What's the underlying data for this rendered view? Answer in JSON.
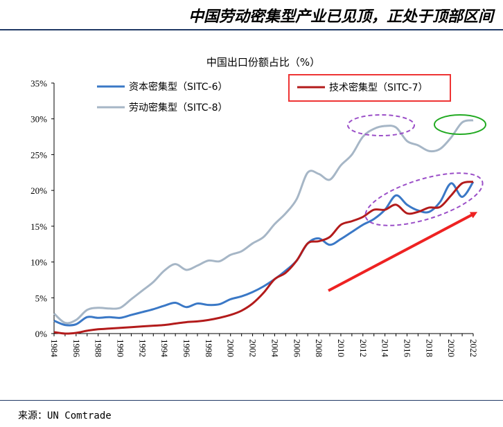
{
  "header": {
    "title": "中国劳动密集型产业已见顶，正处于顶部区间"
  },
  "footer": {
    "source": "来源：UN Comtrade"
  },
  "chart_data": {
    "type": "line",
    "title": "中国出口份额占比（%）",
    "xlabel": "",
    "ylabel": "",
    "xlim": [
      1984,
      2022
    ],
    "ylim": [
      0,
      35
    ],
    "y_ticks": [
      "0%",
      "5%",
      "10%",
      "15%",
      "20%",
      "25%",
      "30%",
      "35%"
    ],
    "x_ticks": [
      "1984",
      "1986",
      "1988",
      "1990",
      "1992",
      "1994",
      "1996",
      "1998",
      "2000",
      "2002",
      "2004",
      "2006",
      "2008",
      "2010",
      "2012",
      "2014",
      "2016",
      "2018",
      "2020",
      "2022"
    ],
    "grid": false,
    "legend_position": "top-left",
    "x": [
      1984,
      1985,
      1986,
      1987,
      1988,
      1989,
      1990,
      1991,
      1992,
      1993,
      1994,
      1995,
      1996,
      1997,
      1998,
      1999,
      2000,
      2001,
      2002,
      2003,
      2004,
      2005,
      2006,
      2007,
      2008,
      2009,
      2010,
      2011,
      2012,
      2013,
      2014,
      2015,
      2016,
      2017,
      2018,
      2019,
      2020,
      2021,
      2022
    ],
    "series": [
      {
        "name": "资本密集型（SITC-6）",
        "color": "#3a78c6",
        "values": [
          1.8,
          1.2,
          1.3,
          2.3,
          2.2,
          2.3,
          2.2,
          2.6,
          3.0,
          3.4,
          3.9,
          4.3,
          3.7,
          4.2,
          4.0,
          4.1,
          4.8,
          5.2,
          5.8,
          6.6,
          7.6,
          8.8,
          10.2,
          12.6,
          13.3,
          12.4,
          13.2,
          14.2,
          15.2,
          16.0,
          17.3,
          19.3,
          18.0,
          17.2,
          17.0,
          18.4,
          21.0,
          19.1,
          21.2
        ]
      },
      {
        "name": "技术密集型（SITC-7）",
        "color": "#b31b1b",
        "values": [
          0.2,
          0.0,
          0.1,
          0.4,
          0.6,
          0.7,
          0.8,
          0.9,
          1.0,
          1.1,
          1.2,
          1.4,
          1.6,
          1.7,
          1.9,
          2.2,
          2.6,
          3.2,
          4.2,
          5.7,
          7.6,
          8.5,
          10.2,
          12.6,
          12.9,
          13.5,
          15.2,
          15.7,
          16.3,
          17.3,
          17.3,
          18.0,
          16.8,
          17.0,
          17.6,
          17.7,
          19.3,
          21.0,
          21.2
        ]
      },
      {
        "name": "劳动密集型（SITC-8）",
        "color": "#a6b6c6",
        "values": [
          2.8,
          1.5,
          1.9,
          3.3,
          3.6,
          3.5,
          3.6,
          4.8,
          6.0,
          7.2,
          8.8,
          9.7,
          8.9,
          9.5,
          10.2,
          10.1,
          11.0,
          11.5,
          12.6,
          13.5,
          15.3,
          16.8,
          18.8,
          22.5,
          22.3,
          21.5,
          23.5,
          25.0,
          27.5,
          28.6,
          29.0,
          28.8,
          26.9,
          26.3,
          25.5,
          25.8,
          27.4,
          29.5,
          29.8
        ]
      }
    ],
    "annotations": {
      "highlighted_legend": "技术密集型（SITC-7）",
      "purple_ellipses": 2,
      "green_ellipse": 1,
      "red_arrow": "trend up"
    }
  }
}
